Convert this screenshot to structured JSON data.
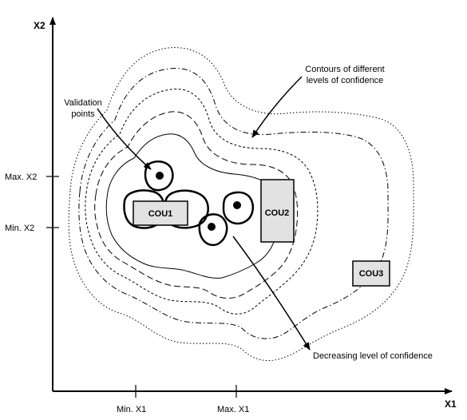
{
  "axes": {
    "x_label": "X1",
    "y_label": "X2",
    "x_ticks": [
      "Min. X1",
      "Max. X1"
    ],
    "y_ticks": [
      "Max. X2",
      "Min. X2"
    ]
  },
  "boxes": [
    "COU1",
    "COU2",
    "COU3"
  ],
  "annotations": {
    "validation": [
      "Validation",
      "points"
    ],
    "contours": [
      "Contours of different",
      "levels of confidence"
    ],
    "decreasing": "Decreasing level of confidence"
  },
  "colors": {
    "box_fill": "#e2e2e2",
    "ink": "#000000"
  }
}
